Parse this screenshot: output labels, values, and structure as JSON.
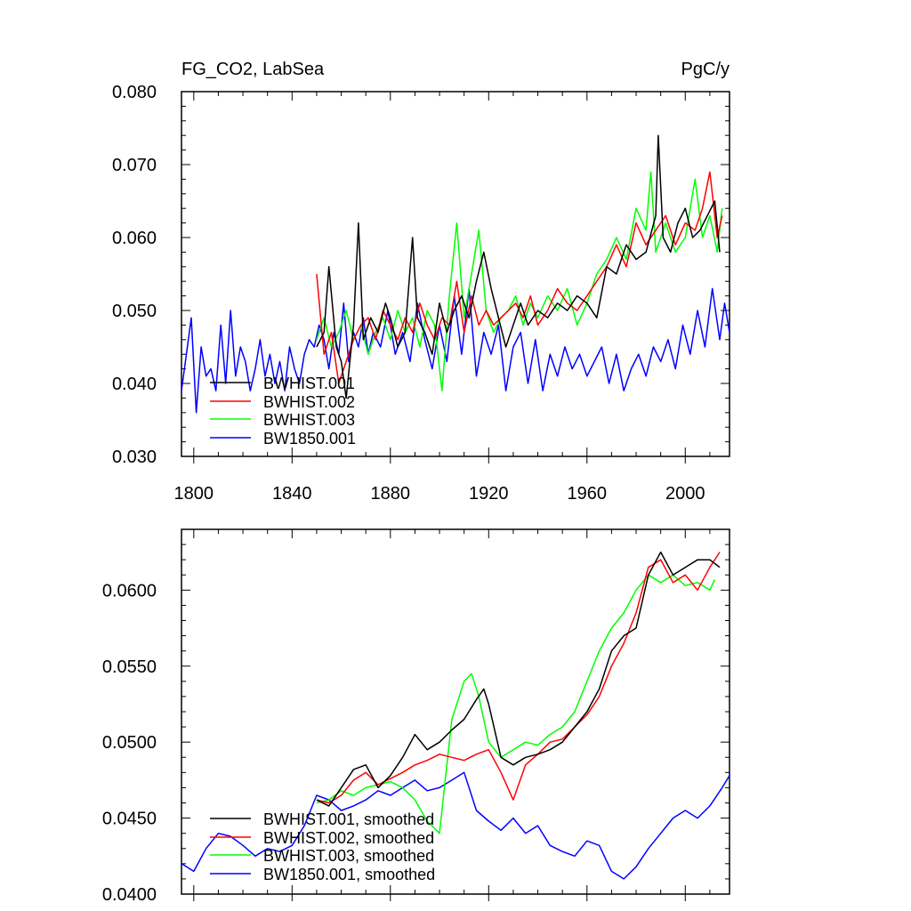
{
  "chart_data": [
    {
      "type": "line",
      "title_left": "FG_CO2, LabSea",
      "title_right": "PgC/y",
      "xlabel": "",
      "ylabel": "",
      "xlim": [
        1795,
        2018
      ],
      "ylim": [
        0.03,
        0.08
      ],
      "xticks": [
        1800,
        1840,
        1880,
        1920,
        1960,
        2000
      ],
      "xtick_labels": [
        "1800",
        "1840",
        "1880",
        "1920",
        "1960",
        "2000"
      ],
      "yticks": [
        0.03,
        0.04,
        0.05,
        0.06,
        0.07,
        0.08
      ],
      "ytick_labels": [
        "0.030",
        "0.040",
        "0.050",
        "0.060",
        "0.070",
        "0.080"
      ],
      "legend_position": "bottom-left",
      "series": [
        {
          "name": "BWHIST.001",
          "color": "#000000",
          "x": [
            1850,
            1853,
            1855,
            1858,
            1860,
            1862,
            1865,
            1867,
            1869,
            1872,
            1875,
            1878,
            1880,
            1883,
            1886,
            1889,
            1891,
            1894,
            1897,
            1900,
            1903,
            1906,
            1909,
            1912,
            1915,
            1918,
            1921,
            1924,
            1927,
            1930,
            1933,
            1936,
            1940,
            1944,
            1948,
            1952,
            1956,
            1960,
            1964,
            1968,
            1972,
            1976,
            1980,
            1984,
            1988,
            1989,
            1991,
            1994,
            1997,
            2000,
            2003,
            2006,
            2009,
            2012,
            2014
          ],
          "values": [
            0.045,
            0.047,
            0.056,
            0.045,
            0.043,
            0.038,
            0.048,
            0.062,
            0.046,
            0.049,
            0.047,
            0.051,
            0.049,
            0.045,
            0.047,
            0.06,
            0.049,
            0.047,
            0.044,
            0.051,
            0.047,
            0.05,
            0.052,
            0.049,
            0.054,
            0.058,
            0.053,
            0.049,
            0.045,
            0.048,
            0.051,
            0.048,
            0.05,
            0.049,
            0.051,
            0.05,
            0.052,
            0.051,
            0.049,
            0.056,
            0.055,
            0.059,
            0.057,
            0.058,
            0.063,
            0.074,
            0.06,
            0.058,
            0.062,
            0.064,
            0.06,
            0.061,
            0.063,
            0.065,
            0.058
          ]
        },
        {
          "name": "BWHIST.002",
          "color": "#ff0000",
          "x": [
            1850,
            1853,
            1856,
            1859,
            1862,
            1865,
            1868,
            1871,
            1874,
            1877,
            1880,
            1883,
            1886,
            1889,
            1892,
            1895,
            1898,
            1901,
            1904,
            1907,
            1910,
            1913,
            1916,
            1919,
            1922,
            1925,
            1928,
            1931,
            1934,
            1937,
            1940,
            1944,
            1948,
            1952,
            1956,
            1960,
            1964,
            1968,
            1972,
            1976,
            1980,
            1984,
            1988,
            1992,
            1996,
            2000,
            2004,
            2007,
            2010,
            2013,
            2015
          ],
          "values": [
            0.055,
            0.044,
            0.047,
            0.04,
            0.043,
            0.046,
            0.048,
            0.049,
            0.046,
            0.05,
            0.048,
            0.046,
            0.049,
            0.047,
            0.051,
            0.048,
            0.046,
            0.049,
            0.048,
            0.054,
            0.047,
            0.052,
            0.048,
            0.05,
            0.048,
            0.049,
            0.05,
            0.051,
            0.049,
            0.052,
            0.048,
            0.05,
            0.053,
            0.051,
            0.05,
            0.052,
            0.054,
            0.056,
            0.059,
            0.056,
            0.062,
            0.059,
            0.061,
            0.063,
            0.059,
            0.062,
            0.061,
            0.064,
            0.069,
            0.06,
            0.063
          ]
        },
        {
          "name": "BWHIST.003",
          "color": "#00ff00",
          "x": [
            1850,
            1853,
            1856,
            1859,
            1862,
            1865,
            1868,
            1871,
            1874,
            1877,
            1880,
            1883,
            1886,
            1889,
            1892,
            1895,
            1898,
            1901,
            1904,
            1907,
            1910,
            1913,
            1916,
            1919,
            1922,
            1925,
            1928,
            1931,
            1934,
            1937,
            1940,
            1944,
            1948,
            1952,
            1956,
            1960,
            1964,
            1968,
            1972,
            1976,
            1980,
            1984,
            1986,
            1988,
            1992,
            1996,
            2000,
            2004,
            2007,
            2010,
            2013,
            2015
          ],
          "values": [
            0.046,
            0.049,
            0.045,
            0.047,
            0.05,
            0.046,
            0.048,
            0.044,
            0.047,
            0.049,
            0.046,
            0.05,
            0.047,
            0.049,
            0.045,
            0.05,
            0.048,
            0.039,
            0.052,
            0.062,
            0.049,
            0.055,
            0.061,
            0.05,
            0.047,
            0.049,
            0.05,
            0.052,
            0.048,
            0.051,
            0.049,
            0.052,
            0.05,
            0.053,
            0.048,
            0.051,
            0.055,
            0.057,
            0.06,
            0.057,
            0.064,
            0.061,
            0.069,
            0.058,
            0.062,
            0.058,
            0.06,
            0.068,
            0.06,
            0.063,
            0.058,
            0.064
          ]
        },
        {
          "name": "BW1850.001",
          "color": "#0000ff",
          "x": [
            1795,
            1797,
            1799,
            1801,
            1803,
            1805,
            1807,
            1809,
            1811,
            1813,
            1815,
            1817,
            1819,
            1821,
            1823,
            1825,
            1827,
            1829,
            1831,
            1833,
            1835,
            1837,
            1839,
            1841,
            1843,
            1845,
            1847,
            1849,
            1851,
            1853,
            1855,
            1857,
            1859,
            1861,
            1863,
            1865,
            1867,
            1869,
            1871,
            1873,
            1876,
            1879,
            1882,
            1885,
            1888,
            1891,
            1894,
            1897,
            1900,
            1903,
            1906,
            1909,
            1912,
            1915,
            1918,
            1921,
            1924,
            1927,
            1930,
            1933,
            1936,
            1939,
            1942,
            1945,
            1948,
            1951,
            1954,
            1957,
            1960,
            1963,
            1966,
            1969,
            1972,
            1975,
            1978,
            1981,
            1984,
            1987,
            1990,
            1993,
            1996,
            1999,
            2002,
            2005,
            2008,
            2011,
            2014,
            2016,
            2018
          ],
          "values": [
            0.039,
            0.044,
            0.049,
            0.036,
            0.045,
            0.041,
            0.042,
            0.039,
            0.048,
            0.04,
            0.05,
            0.041,
            0.045,
            0.043,
            0.039,
            0.042,
            0.046,
            0.041,
            0.044,
            0.04,
            0.043,
            0.039,
            0.045,
            0.042,
            0.04,
            0.044,
            0.046,
            0.045,
            0.048,
            0.046,
            0.042,
            0.047,
            0.044,
            0.051,
            0.043,
            0.047,
            0.045,
            0.049,
            0.044,
            0.047,
            0.045,
            0.05,
            0.044,
            0.047,
            0.043,
            0.051,
            0.046,
            0.042,
            0.048,
            0.043,
            0.052,
            0.044,
            0.053,
            0.041,
            0.047,
            0.044,
            0.048,
            0.039,
            0.045,
            0.047,
            0.04,
            0.046,
            0.039,
            0.044,
            0.041,
            0.045,
            0.042,
            0.044,
            0.041,
            0.043,
            0.045,
            0.04,
            0.044,
            0.039,
            0.042,
            0.044,
            0.041,
            0.045,
            0.043,
            0.046,
            0.042,
            0.048,
            0.044,
            0.05,
            0.045,
            0.053,
            0.046,
            0.051,
            0.047
          ]
        }
      ]
    },
    {
      "type": "line",
      "title_left": "",
      "title_right": "",
      "xlabel": "",
      "ylabel": "",
      "xlim": [
        1795,
        2018
      ],
      "ylim": [
        0.04,
        0.064
      ],
      "xticks": [
        1800,
        1840,
        1880,
        1920,
        1960,
        2000
      ],
      "yticks": [
        0.04,
        0.045,
        0.05,
        0.055,
        0.06
      ],
      "ytick_labels": [
        "0.0400",
        "0.0450",
        "0.0500",
        "0.0550",
        "0.0600"
      ],
      "legend_position": "bottom-left",
      "series": [
        {
          "name": "BWHIST.001, smoothed",
          "color": "#000000",
          "x": [
            1850,
            1855,
            1860,
            1865,
            1870,
            1875,
            1880,
            1885,
            1890,
            1895,
            1900,
            1905,
            1910,
            1915,
            1918,
            1920,
            1925,
            1930,
            1935,
            1940,
            1945,
            1950,
            1955,
            1960,
            1965,
            1970,
            1975,
            1980,
            1985,
            1990,
            1995,
            2000,
            2005,
            2010,
            2014
          ],
          "values": [
            0.0462,
            0.0458,
            0.047,
            0.0482,
            0.0485,
            0.047,
            0.0478,
            0.049,
            0.0505,
            0.0495,
            0.05,
            0.0508,
            0.0515,
            0.0528,
            0.0535,
            0.0525,
            0.049,
            0.0485,
            0.049,
            0.0492,
            0.0495,
            0.05,
            0.051,
            0.052,
            0.0535,
            0.056,
            0.057,
            0.0575,
            0.061,
            0.0625,
            0.061,
            0.0615,
            0.062,
            0.062,
            0.0615
          ]
        },
        {
          "name": "BWHIST.002, smoothed",
          "color": "#ff0000",
          "x": [
            1850,
            1855,
            1860,
            1865,
            1870,
            1875,
            1880,
            1885,
            1890,
            1895,
            1900,
            1905,
            1910,
            1915,
            1920,
            1925,
            1930,
            1935,
            1940,
            1945,
            1950,
            1955,
            1960,
            1965,
            1970,
            1975,
            1980,
            1985,
            1990,
            1995,
            2000,
            2005,
            2010,
            2014
          ],
          "values": [
            0.0462,
            0.046,
            0.0465,
            0.0475,
            0.048,
            0.0472,
            0.0476,
            0.048,
            0.0485,
            0.0488,
            0.0492,
            0.049,
            0.0488,
            0.0492,
            0.0495,
            0.048,
            0.0462,
            0.0485,
            0.0492,
            0.05,
            0.0502,
            0.051,
            0.0518,
            0.053,
            0.055,
            0.0565,
            0.0585,
            0.0615,
            0.062,
            0.0605,
            0.061,
            0.06,
            0.0615,
            0.0625
          ]
        },
        {
          "name": "BWHIST.003, smoothed",
          "color": "#00ff00",
          "x": [
            1850,
            1855,
            1860,
            1865,
            1870,
            1875,
            1880,
            1885,
            1890,
            1895,
            1900,
            1903,
            1905,
            1910,
            1913,
            1916,
            1920,
            1925,
            1930,
            1935,
            1940,
            1945,
            1950,
            1955,
            1960,
            1965,
            1970,
            1975,
            1980,
            1985,
            1990,
            1995,
            2000,
            2005,
            2010,
            2012
          ],
          "values": [
            0.046,
            0.0462,
            0.0468,
            0.0465,
            0.047,
            0.0472,
            0.0474,
            0.047,
            0.0462,
            0.0448,
            0.044,
            0.0485,
            0.0515,
            0.054,
            0.0545,
            0.053,
            0.05,
            0.049,
            0.0495,
            0.05,
            0.0498,
            0.0505,
            0.051,
            0.052,
            0.054,
            0.056,
            0.0575,
            0.0585,
            0.06,
            0.061,
            0.0605,
            0.061,
            0.0603,
            0.0605,
            0.06,
            0.0607
          ]
        },
        {
          "name": "BW1850.001, smoothed",
          "color": "#0000ff",
          "x": [
            1795,
            1800,
            1805,
            1810,
            1815,
            1820,
            1825,
            1830,
            1835,
            1840,
            1845,
            1850,
            1855,
            1860,
            1865,
            1870,
            1875,
            1880,
            1885,
            1890,
            1895,
            1900,
            1905,
            1910,
            1915,
            1920,
            1925,
            1930,
            1935,
            1940,
            1945,
            1950,
            1955,
            1960,
            1965,
            1970,
            1975,
            1980,
            1985,
            1990,
            1995,
            2000,
            2005,
            2010,
            2015,
            2018
          ],
          "values": [
            0.042,
            0.0415,
            0.043,
            0.044,
            0.0438,
            0.0432,
            0.0425,
            0.043,
            0.0428,
            0.0432,
            0.0445,
            0.0465,
            0.0462,
            0.0455,
            0.0458,
            0.0462,
            0.0468,
            0.0465,
            0.047,
            0.0475,
            0.0468,
            0.047,
            0.0475,
            0.048,
            0.0455,
            0.0448,
            0.0442,
            0.045,
            0.044,
            0.0445,
            0.0432,
            0.0428,
            0.0425,
            0.0435,
            0.0432,
            0.0415,
            0.041,
            0.0418,
            0.043,
            0.044,
            0.045,
            0.0455,
            0.045,
            0.0458,
            0.047,
            0.0478
          ]
        }
      ]
    }
  ]
}
